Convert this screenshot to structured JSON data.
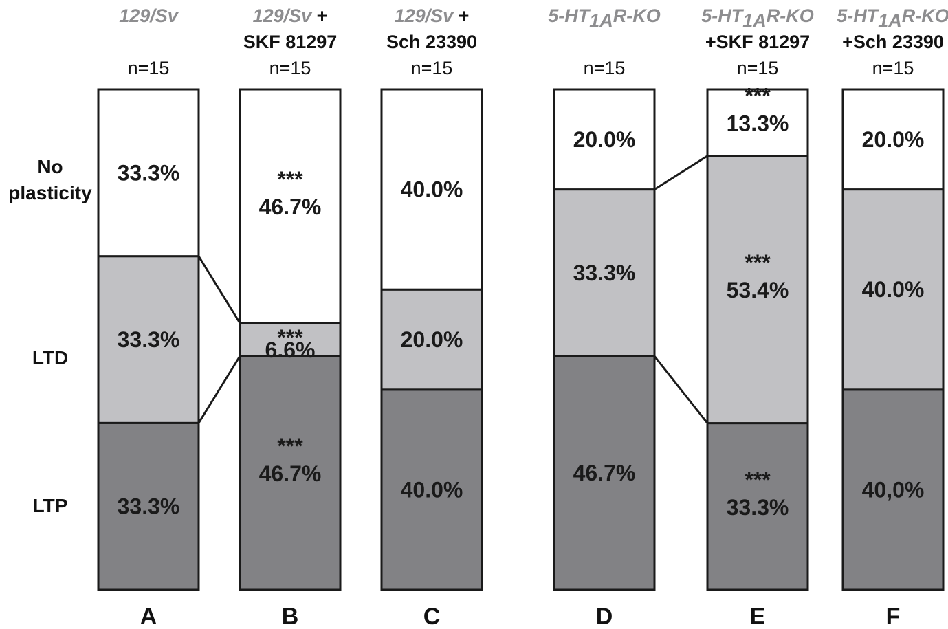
{
  "chart_data": {
    "type": "bar",
    "stacked": true,
    "categories": [
      "A",
      "B",
      "C",
      "D",
      "E",
      "F"
    ],
    "row_labels": [
      {
        "key": "none",
        "text": "No\nplasticity"
      },
      {
        "key": "ltd",
        "text": "LTD"
      },
      {
        "key": "ltp",
        "text": "LTP"
      }
    ],
    "colors": {
      "none": "#ffffff",
      "ltd": "#c1c1c4",
      "ltp": "#828285",
      "outline": "#1a1a1a"
    },
    "groups": [
      {
        "letter": "A",
        "title": {
          "gray": "129/Sv",
          "black": "",
          "line2": ""
        },
        "n": "n=15",
        "segments": [
          {
            "key": "ltp",
            "value": 33.3,
            "label": "33.3%",
            "stars": ""
          },
          {
            "key": "ltd",
            "value": 33.3,
            "label": "33.3%",
            "stars": ""
          },
          {
            "key": "none",
            "value": 33.3,
            "label": "33.3%",
            "stars": ""
          }
        ]
      },
      {
        "letter": "B",
        "title": {
          "gray": "129/Sv",
          "black": " +",
          "line2": "SKF 81297"
        },
        "n": "n=15",
        "segments": [
          {
            "key": "ltp",
            "value": 46.7,
            "label": "46.7%",
            "stars": "***"
          },
          {
            "key": "ltd",
            "value": 6.6,
            "label": "6.6%",
            "stars": "***"
          },
          {
            "key": "none",
            "value": 46.7,
            "label": "46.7%",
            "stars": "***"
          }
        ]
      },
      {
        "letter": "C",
        "title": {
          "gray": "129/Sv",
          "black": " +",
          "line2": "Sch 23390"
        },
        "n": "n=15",
        "segments": [
          {
            "key": "ltp",
            "value": 40.0,
            "label": "40.0%",
            "stars": ""
          },
          {
            "key": "ltd",
            "value": 20.0,
            "label": "20.0%",
            "stars": ""
          },
          {
            "key": "none",
            "value": 40.0,
            "label": "40.0%",
            "stars": ""
          }
        ]
      },
      {
        "letter": "D",
        "title": {
          "gray": "5-HT",
          "sub": "1A",
          "gray_after": "R-KO",
          "black": "",
          "line2": ""
        },
        "n": "n=15",
        "segments": [
          {
            "key": "ltp",
            "value": 46.7,
            "label": "46.7%",
            "stars": ""
          },
          {
            "key": "ltd",
            "value": 33.3,
            "label": "33.3%",
            "stars": ""
          },
          {
            "key": "none",
            "value": 20.0,
            "label": "20.0%",
            "stars": ""
          }
        ]
      },
      {
        "letter": "E",
        "title": {
          "gray": "5-HT",
          "sub": "1A",
          "gray_after": "R-KO",
          "black": "",
          "line2": "+SKF 81297"
        },
        "n": "n=15",
        "segments": [
          {
            "key": "ltp",
            "value": 33.3,
            "label": "33.3%",
            "stars": "***"
          },
          {
            "key": "ltd",
            "value": 53.4,
            "label": "53.4%",
            "stars": "***"
          },
          {
            "key": "none",
            "value": 13.3,
            "label": "13.3%",
            "stars": "***"
          }
        ]
      },
      {
        "letter": "F",
        "title": {
          "gray": "5-HT",
          "sub": "1A",
          "gray_after": "R-KO",
          "black": "",
          "line2": "+Sch 23390"
        },
        "n": "n=15",
        "segments": [
          {
            "key": "ltp",
            "value": 40.0,
            "label": "40,0%",
            "stars": ""
          },
          {
            "key": "ltd",
            "value": 40.0,
            "label": "40.0%",
            "stars": ""
          },
          {
            "key": "none",
            "value": 20.0,
            "label": "20.0%",
            "stars": ""
          }
        ]
      }
    ],
    "connectors": [
      {
        "from": "A",
        "to": "B",
        "boundary": "ltd"
      },
      {
        "from": "D",
        "to": "E",
        "boundary": "ltd"
      }
    ]
  }
}
